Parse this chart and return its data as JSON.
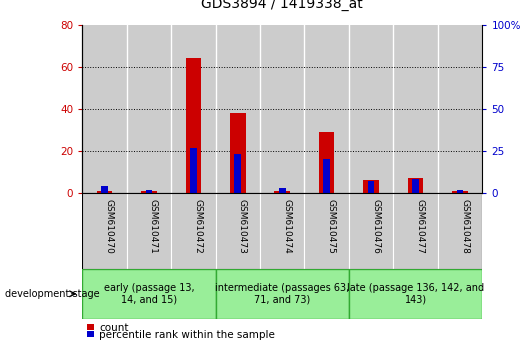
{
  "title": "GDS3894 / 1419338_at",
  "categories": [
    "GSM610470",
    "GSM610471",
    "GSM610472",
    "GSM610473",
    "GSM610474",
    "GSM610475",
    "GSM610476",
    "GSM610477",
    "GSM610478"
  ],
  "count_values": [
    1,
    1,
    64,
    38,
    1,
    29,
    6,
    7,
    1
  ],
  "percentile_values": [
    4,
    2,
    27,
    23,
    3,
    20,
    7,
    8,
    2
  ],
  "count_color": "#cc0000",
  "percentile_color": "#0000cc",
  "ylim_left": [
    0,
    80
  ],
  "ylim_right": [
    0,
    100
  ],
  "yticks_left": [
    0,
    20,
    40,
    60,
    80
  ],
  "yticks_right": [
    0,
    25,
    50,
    75,
    100
  ],
  "ytick_labels_left": [
    "0",
    "20",
    "40",
    "60",
    "80"
  ],
  "ytick_labels_right": [
    "0",
    "25",
    "50",
    "75",
    "100%"
  ],
  "groups": [
    {
      "label": "early (passage 13,\n14, and 15)",
      "start": 0,
      "end": 3,
      "color": "#99ee99"
    },
    {
      "label": "intermediate (passages 63,\n71, and 73)",
      "start": 3,
      "end": 6,
      "color": "#99ee99"
    },
    {
      "label": "late (passage 136, 142, and\n143)",
      "start": 6,
      "end": 9,
      "color": "#99ee99"
    }
  ],
  "group_border_color": "#33aa33",
  "bar_background": "#cccccc",
  "bar_sep_color": "#ffffff",
  "plot_bg": "#ffffff",
  "count_bar_width": 0.35,
  "percentile_bar_width": 0.15,
  "dev_stage_label": "development stage",
  "legend_count": "count",
  "legend_percentile": "percentile rank within the sample",
  "grid_yticks": [
    20,
    40,
    60
  ],
  "title_fontsize": 10,
  "tick_label_fontsize": 7.5,
  "group_label_fontsize": 7,
  "legend_fontsize": 7.5
}
